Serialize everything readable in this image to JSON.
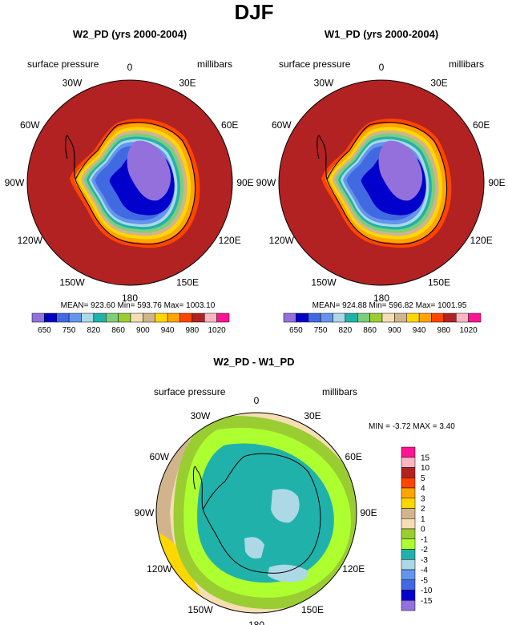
{
  "figure": {
    "title": "DJF",
    "variable_label": "surface pressure",
    "units_label": "millibars"
  },
  "colors": {
    "abs_fills": [
      "#9370db",
      "#0000cd",
      "#4169e1",
      "#6495ed",
      "#add8e6",
      "#20b2aa",
      "#7ccd7c",
      "#9acd32",
      "#f5deb3",
      "#d2b48c",
      "#ffd700",
      "#ffa500",
      "#ff4500",
      "#b22222",
      "#ffb6c1",
      "#ff1493"
    ],
    "diff_fills": [
      "#9370db",
      "#0000cd",
      "#4169e1",
      "#6495ed",
      "#add8e6",
      "#20b2aa",
      "#adff2f",
      "#9acd32",
      "#f5deb3",
      "#d2b48c",
      "#ffd700",
      "#ffa500",
      "#ff4500",
      "#b22222",
      "#ffb6c1",
      "#ff1493"
    ]
  },
  "chart_data": [
    {
      "type": "heatmap",
      "projection": "south-polar-stereographic",
      "title": "W2_PD (yrs 2000-2004)",
      "left_label": "surface pressure",
      "right_label": "millibars",
      "lon_labels": [
        "0",
        "30E",
        "60E",
        "90E",
        "120E",
        "150E",
        "180",
        "150W",
        "120W",
        "90W",
        "60W",
        "30W"
      ],
      "stats": {
        "mean": 923.6,
        "min": 593.76,
        "max": 1003.1
      },
      "stats_text": "MEAN= 923.60  Min= 593.76  Max= 1003.10",
      "colorbar_levels": [
        650,
        700,
        750,
        800,
        820,
        840,
        860,
        880,
        900,
        920,
        940,
        960,
        980,
        1000,
        1020
      ],
      "colorbar_tick_labels": [
        "650",
        "750",
        "820",
        "860",
        "900",
        "940",
        "980",
        "1020"
      ]
    },
    {
      "type": "heatmap",
      "projection": "south-polar-stereographic",
      "title": "W1_PD (yrs 2000-2004)",
      "left_label": "surface pressure",
      "right_label": "millibars",
      "lon_labels": [
        "0",
        "30E",
        "60E",
        "90E",
        "120E",
        "150E",
        "180",
        "150W",
        "120W",
        "90W",
        "60W",
        "30W"
      ],
      "stats": {
        "mean": 924.88,
        "min": 596.82,
        "max": 1001.95
      },
      "stats_text": "MEAN= 924.88  Min= 596.82  Max= 1001.95",
      "colorbar_levels": [
        650,
        700,
        750,
        800,
        820,
        840,
        860,
        880,
        900,
        920,
        940,
        960,
        980,
        1000,
        1020
      ],
      "colorbar_tick_labels": [
        "650",
        "750",
        "820",
        "860",
        "900",
        "940",
        "980",
        "1020"
      ]
    },
    {
      "type": "heatmap",
      "projection": "south-polar-stereographic",
      "title": "W2_PD - W1_PD",
      "left_label": "surface pressure",
      "right_label": "millibars",
      "lon_labels": [
        "0",
        "30E",
        "60E",
        "90E",
        "120E",
        "150E",
        "180",
        "150W",
        "120W",
        "90W",
        "60W",
        "30W"
      ],
      "stats": {
        "min": -3.72,
        "max": 3.4
      },
      "stats_text": "MIN =  -3.72 MAX =   3.40",
      "colorbar_levels": [
        -15,
        -10,
        -5,
        -4,
        -3,
        -2,
        -1,
        0,
        1,
        2,
        3,
        4,
        5,
        10,
        15
      ],
      "colorbar_tick_labels": [
        "15",
        "10",
        "5",
        "4",
        "3",
        "2",
        "1",
        "0",
        "-1",
        "-2",
        "-3",
        "-4",
        "-5",
        "-10",
        "-15"
      ]
    }
  ]
}
